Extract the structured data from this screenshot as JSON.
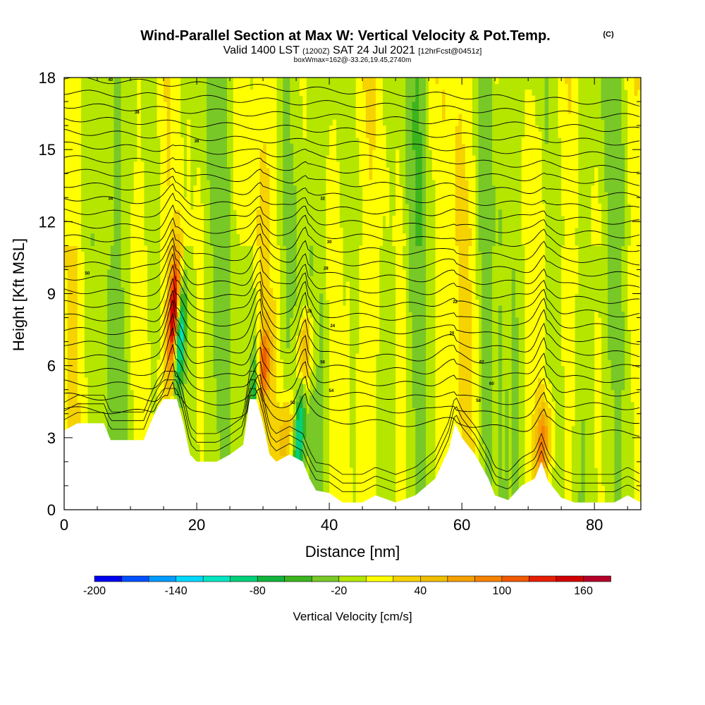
{
  "header": {
    "title": "Wind-Parallel Section at Max W: Vertical Velocity & Pot.Temp.",
    "copyright": "(C)",
    "valid_prefix": "Valid 1400 LST",
    "valid_utc": "(1200Z)",
    "valid_date": "SAT 24 Jul 2021",
    "forecast": "[12hrFcst@0451z]",
    "box_info": "boxWmax=162@-33.26,19.45,2740m"
  },
  "chart_data": {
    "type": "heatmap",
    "title": "Wind-Parallel Section at Max W: Vertical Velocity & Pot.Temp.",
    "xlabel": "Distance [nm]",
    "ylabel": "Height [Kft MSL]",
    "xlim": [
      0,
      87
    ],
    "ylim": [
      0,
      18
    ],
    "x_ticks": [
      0,
      20,
      40,
      60,
      80
    ],
    "x_tick_labels": [
      "0",
      "20",
      "40",
      "60",
      "80"
    ],
    "y_ticks": [
      0,
      3,
      6,
      9,
      12,
      15,
      18
    ],
    "y_tick_labels": [
      "0",
      "3",
      "6",
      "9",
      "12",
      "15",
      "18"
    ],
    "terrain_kft": [
      [
        0,
        3.3
      ],
      [
        2,
        3.6
      ],
      [
        6,
        3.6
      ],
      [
        7,
        2.9
      ],
      [
        12,
        2.9
      ],
      [
        13,
        3.6
      ],
      [
        14,
        4.2
      ],
      [
        15,
        4.6
      ],
      [
        17,
        4.6
      ],
      [
        18,
        3.6
      ],
      [
        19,
        2.3
      ],
      [
        20,
        2.0
      ],
      [
        23,
        2.0
      ],
      [
        25,
        2.3
      ],
      [
        27,
        2.7
      ],
      [
        28,
        4.6
      ],
      [
        29,
        4.6
      ],
      [
        30,
        3.6
      ],
      [
        31,
        2.3
      ],
      [
        32,
        2.0
      ],
      [
        34,
        2.3
      ],
      [
        36,
        2.0
      ],
      [
        37,
        1.3
      ],
      [
        38,
        0.8
      ],
      [
        40,
        0.7
      ],
      [
        42,
        0.3
      ],
      [
        45,
        0.3
      ],
      [
        47,
        0.6
      ],
      [
        50,
        0.3
      ],
      [
        53,
        0.6
      ],
      [
        56,
        1.3
      ],
      [
        58,
        2.5
      ],
      [
        59,
        3.6
      ],
      [
        60,
        3.0
      ],
      [
        62,
        2.3
      ],
      [
        64,
        1.3
      ],
      [
        65,
        0.6
      ],
      [
        67,
        0.4
      ],
      [
        69,
        1.0
      ],
      [
        71,
        1.3
      ],
      [
        72,
        2.0
      ],
      [
        73,
        1.2
      ],
      [
        75,
        0.5
      ],
      [
        77,
        0.3
      ],
      [
        80,
        0.3
      ],
      [
        83,
        0.3
      ],
      [
        85,
        0.6
      ],
      [
        87,
        0.3
      ]
    ],
    "updrafts": [
      {
        "x": 16.6,
        "y": 8.3,
        "max_cms": 160
      },
      {
        "x": 29.9,
        "y": 6.0,
        "max_cms": 90
      },
      {
        "x": 36.3,
        "y": 6.5,
        "max_cms": 70
      },
      {
        "x": 72.3,
        "y": 2.8,
        "max_cms": 70
      },
      {
        "x": 33.5,
        "y": 3.2,
        "max_cms": 55
      }
    ],
    "downdrafts": [
      {
        "x": 17.4,
        "y": 7.2,
        "min_cms": -130
      },
      {
        "x": 28.8,
        "y": 5.2,
        "min_cms": -80
      },
      {
        "x": 35.5,
        "y": 3.2,
        "min_cms": -80
      }
    ],
    "theta_labels": [
      "40",
      "38",
      "36",
      "34",
      "32",
      "30",
      "28",
      "26",
      "24",
      "22",
      "20",
      "62",
      "60",
      "58",
      "56",
      "54",
      "52",
      "50"
    ],
    "colorbar": {
      "label": "Vertical Velocity [cm/s]",
      "tick_labels": [
        "-200",
        "-140",
        "-80",
        "-20",
        "40",
        "100",
        "160"
      ],
      "colors": [
        "#0000f0",
        "#0050ff",
        "#009cff",
        "#00d8ff",
        "#00e6c0",
        "#00d07a",
        "#12b43c",
        "#3cb41e",
        "#78c828",
        "#b4e600",
        "#ffff00",
        "#f5d200",
        "#f0be00",
        "#f5a000",
        "#f58200",
        "#f05a00",
        "#e61e00",
        "#d20000",
        "#b40028"
      ]
    }
  }
}
